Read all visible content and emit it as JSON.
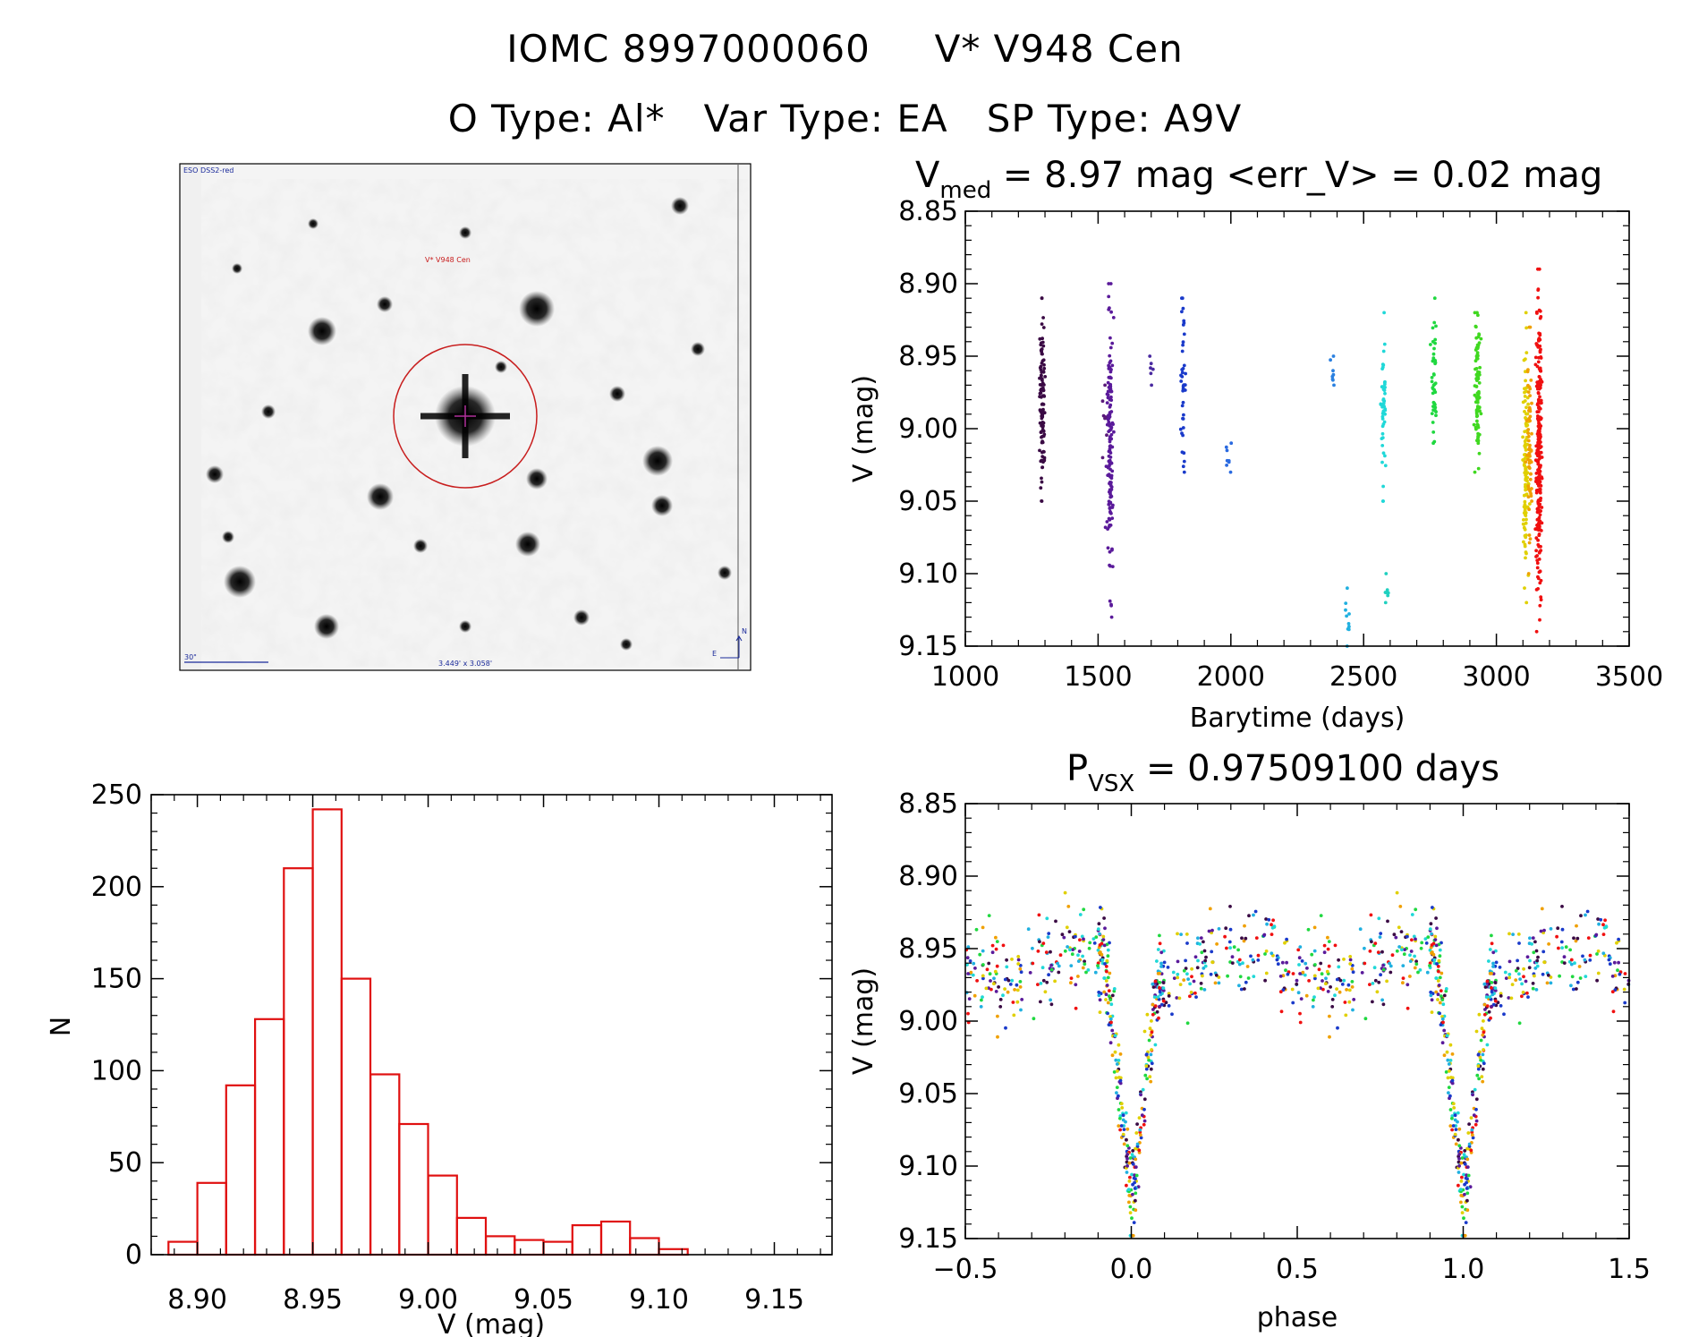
{
  "header": {
    "title_line1": "IOMC 8997000060     V* V948 Cen",
    "title_line2": "O Type: Al*   Var Type: EA   SP Type: A9V"
  },
  "finder_chart": {
    "survey_label": "ESO DSS2-red",
    "target_label": "V* V948 Cen",
    "scale_label": "30\"",
    "fov_label": "3.449' x 3.058'",
    "north_label": "N",
    "east_label": "E",
    "circle_color": "#c81e1e"
  },
  "chart_data": [
    {
      "id": "lightcurve",
      "type": "scatter",
      "title_main": "V",
      "title_sub": "med",
      "title_rest": " = 8.97 mag <err_V> = 0.02 mag",
      "xlabel": "Barytime (days)",
      "ylabel": "V (mag)",
      "xlim": [
        1000,
        3500
      ],
      "ylim": [
        8.85,
        9.15
      ],
      "y_inverted": true,
      "xticks": [
        "1000",
        "1500",
        "2000",
        "2500",
        "3000",
        "3500"
      ],
      "yticks": [
        "8.85",
        "8.90",
        "8.95",
        "9.00",
        "9.05",
        "9.10",
        "9.15"
      ],
      "groups": [
        {
          "x": 1290,
          "ymin": 8.91,
          "ymax": 9.05,
          "n": 110,
          "color": "#3a0a44"
        },
        {
          "x": 1525,
          "ymin": 8.97,
          "ymax": 9.02,
          "n": 8,
          "color": "#5a1a7a"
        },
        {
          "x": 1545,
          "ymin": 8.9,
          "ymax": 9.13,
          "n": 150,
          "color": "#5a1a9a"
        },
        {
          "x": 1700,
          "ymin": 8.95,
          "ymax": 8.97,
          "n": 6,
          "color": "#4a2aa0"
        },
        {
          "x": 1820,
          "ymin": 8.91,
          "ymax": 9.03,
          "n": 40,
          "color": "#1a3aca"
        },
        {
          "x": 1990,
          "ymin": 9.01,
          "ymax": 9.03,
          "n": 8,
          "color": "#2a6ae0"
        },
        {
          "x": 2385,
          "ymin": 8.95,
          "ymax": 8.97,
          "n": 8,
          "color": "#2a80e0"
        },
        {
          "x": 2440,
          "ymin": 9.11,
          "ymax": 9.15,
          "n": 10,
          "color": "#20b0e0"
        },
        {
          "x": 2575,
          "ymin": 8.92,
          "ymax": 9.05,
          "n": 50,
          "color": "#20d8d8"
        },
        {
          "x": 2585,
          "ymin": 9.1,
          "ymax": 9.12,
          "n": 8,
          "color": "#20d0c0"
        },
        {
          "x": 2765,
          "ymin": 8.91,
          "ymax": 9.01,
          "n": 45,
          "color": "#20d840"
        },
        {
          "x": 2930,
          "ymin": 8.92,
          "ymax": 9.03,
          "n": 90,
          "color": "#40d820"
        },
        {
          "x": 3110,
          "ymin": 8.92,
          "ymax": 9.12,
          "n": 110,
          "color": "#e0d000"
        },
        {
          "x": 3125,
          "ymin": 8.93,
          "ymax": 9.1,
          "n": 60,
          "color": "#f0a000"
        },
        {
          "x": 3160,
          "ymin": 8.89,
          "ymax": 9.14,
          "n": 260,
          "color": "#f01010"
        }
      ]
    },
    {
      "id": "histogram",
      "type": "bar",
      "xlabel": "V (mag)",
      "ylabel": "N",
      "xlim": [
        8.88,
        9.175
      ],
      "ylim": [
        0,
        250
      ],
      "xticks": [
        "8.90",
        "8.95",
        "9.00",
        "9.05",
        "9.10",
        "9.15"
      ],
      "yticks": [
        "0",
        "50",
        "100",
        "150",
        "200",
        "250"
      ],
      "bin_width": 0.0125,
      "bins": [
        {
          "x0": 8.8875,
          "n": 7
        },
        {
          "x0": 8.9,
          "n": 39
        },
        {
          "x0": 8.9125,
          "n": 92
        },
        {
          "x0": 8.925,
          "n": 128
        },
        {
          "x0": 8.9375,
          "n": 210
        },
        {
          "x0": 8.95,
          "n": 242
        },
        {
          "x0": 8.9625,
          "n": 150
        },
        {
          "x0": 8.975,
          "n": 98
        },
        {
          "x0": 8.9875,
          "n": 71
        },
        {
          "x0": 9.0,
          "n": 43
        },
        {
          "x0": 9.0125,
          "n": 20
        },
        {
          "x0": 9.025,
          "n": 10
        },
        {
          "x0": 9.0375,
          "n": 8
        },
        {
          "x0": 9.05,
          "n": 7
        },
        {
          "x0": 9.0625,
          "n": 16
        },
        {
          "x0": 9.075,
          "n": 18
        },
        {
          "x0": 9.0875,
          "n": 9
        },
        {
          "x0": 9.1,
          "n": 3
        }
      ],
      "bar_color": "#e01010"
    },
    {
      "id": "phased",
      "type": "scatter",
      "title_main": "P",
      "title_sub": "VSX",
      "title_rest": " = 0.97509100 days",
      "xlabel": "phase",
      "ylabel": "V (mag)",
      "xlim": [
        -0.5,
        1.5
      ],
      "ylim": [
        8.85,
        9.15
      ],
      "y_inverted": true,
      "xticks": [
        "−0.5",
        "0.0",
        "0.5",
        "1.0",
        "1.5"
      ],
      "yticks": [
        "8.85",
        "8.90",
        "8.95",
        "9.00",
        "9.05",
        "9.10",
        "9.15"
      ],
      "curve": {
        "out_of_eclipse_mag": 8.96,
        "eclipse_depth_mag": 0.17,
        "eclipse_halfwidth_phase": 0.09,
        "spread_mag": 0.035
      },
      "colors": [
        "#3a0a44",
        "#5a1a9a",
        "#1a3aca",
        "#20b0e0",
        "#20d8d8",
        "#20d840",
        "#e0d000",
        "#f0a000",
        "#f01010"
      ]
    }
  ]
}
